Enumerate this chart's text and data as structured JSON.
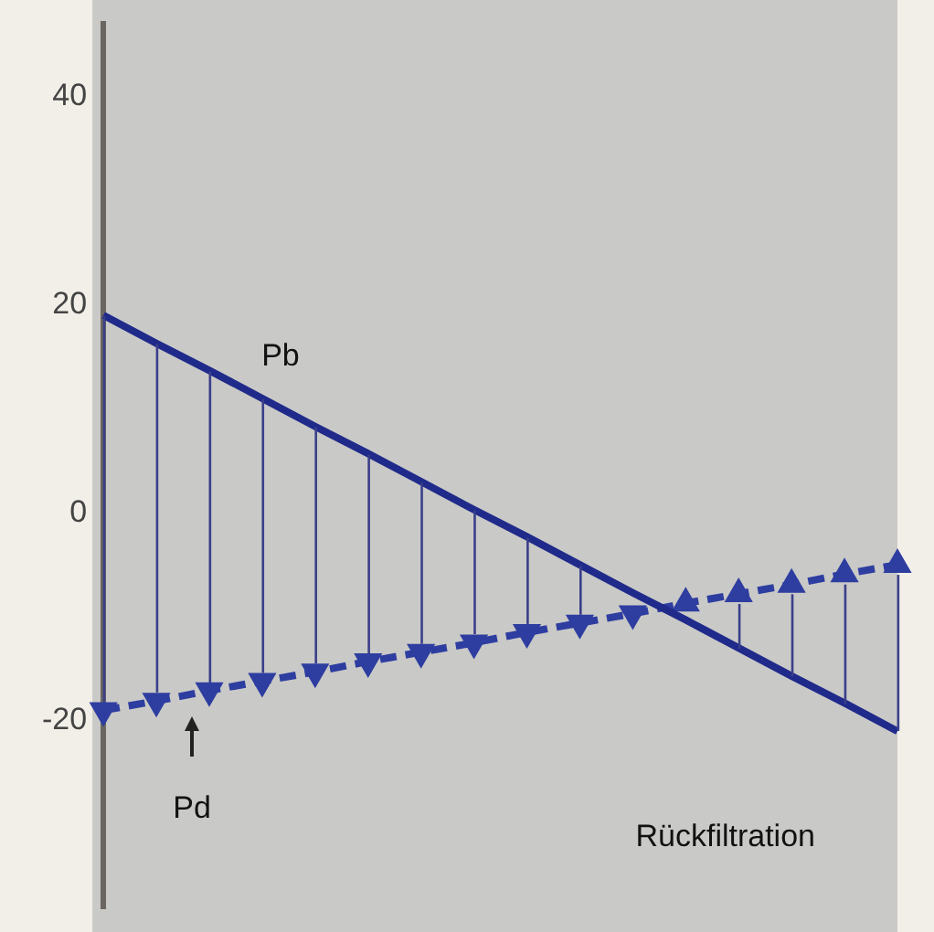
{
  "chart_data": {
    "type": "line",
    "categories": [
      null,
      null,
      null,
      null,
      null,
      null,
      null,
      null,
      null,
      null,
      null,
      null,
      null,
      null,
      null,
      null
    ],
    "series": [
      {
        "name": "Pb",
        "color": "#1f2a8a",
        "line_style": "solid",
        "values": [
          19,
          16.3,
          13.7,
          11,
          8.3,
          5.7,
          3,
          0.3,
          -2.3,
          -5,
          -7.7,
          -10.3,
          -13,
          -15.7,
          -18.3,
          -21
        ]
      },
      {
        "name": "Pd",
        "color": "#2e3da0",
        "line_style": "dashed",
        "marker": "triangle",
        "values": [
          -19,
          -18.1,
          -17.1,
          -16.2,
          -15.3,
          -14.3,
          -13.4,
          -12.5,
          -11.5,
          -10.6,
          -9.7,
          -8.7,
          -7.8,
          -6.9,
          -5.9,
          -5
        ]
      }
    ],
    "ylim": [
      -38,
      47
    ],
    "yticks": [
      -20,
      0,
      20,
      40
    ],
    "grid": false,
    "legend": false,
    "marker": "none",
    "annotations": [
      "Rückfiltration"
    ]
  }
}
